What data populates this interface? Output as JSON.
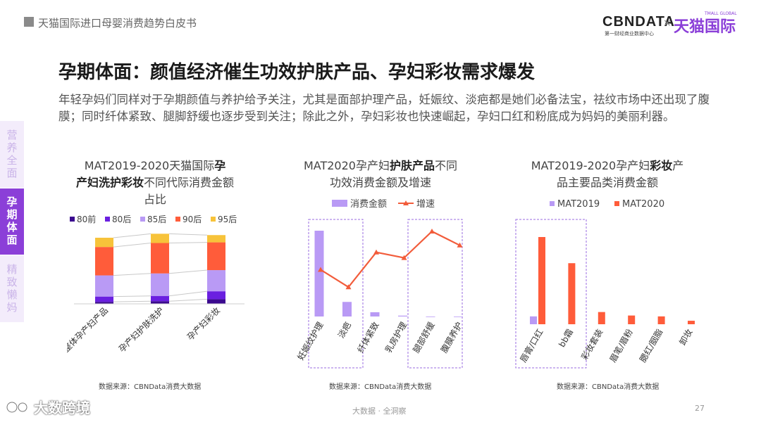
{
  "header": {
    "report_title": "天猫国际进口母婴消费趋势白皮书",
    "cbn_logo": "CBNDATA",
    "cbn_sub": "第一财经商业数据中心",
    "separator": "×",
    "tmall_logo": "天猫国际",
    "tmall_sup": "TMALL GLOBAL"
  },
  "page": {
    "title": "孕期体面：颜值经济催生功效护肤产品、孕妇彩妆需求爆发",
    "description": "年轻孕妈们同样对于孕期颜值与养护给予关注，尤其是面部护理产品，妊娠纹、淡疤都是她们必备法宝，祛纹市场中还出现了腹膜；同时纤体紧致、腿脚舒缓也逐步受到关注；除此之外，孕妇彩妆也快速崛起，孕妇口红和粉底成为妈妈的美丽利器。"
  },
  "sidebar": {
    "items": [
      {
        "label": "营养全面"
      },
      {
        "label": "孕期体面"
      },
      {
        "label": "精致懒妈"
      }
    ]
  },
  "chart1_title": {
    "p1": "MAT2019-2020天猫国际",
    "b1": "孕",
    "b2": "产妇洗护彩妆",
    "p2": "不同代际消费金额",
    "p3": "占比"
  },
  "chart2_title": {
    "p1": "MAT2020孕产妇",
    "b1": "护肤产品",
    "p2": "不同",
    "p3": "功效消费金额及增速"
  },
  "chart3_title": {
    "p1": "MAT2019-2020孕产妇",
    "b1": "彩妆",
    "p2": "产",
    "p3": "品主要品类消费金额"
  },
  "source_text": "数据来源：CBNData消费大数据",
  "footer": {
    "center": "大数据 · 全洞察",
    "page_number": "27",
    "watermark": "大数跨境"
  },
  "colors": {
    "purple_dark": "#3b0a8f",
    "purple_mid": "#6a1fe0",
    "lavender": "#b99af5",
    "coral": "#ff5c3a",
    "yellow": "#f7c33a",
    "brand": "#8b3fd8"
  },
  "chart_data": [
    {
      "type": "bar",
      "stacked": true,
      "normalized": true,
      "categories": [
        "整体孕产妇产品",
        "孕产妇护肤洗护",
        "孕产妇彩妆"
      ],
      "series": [
        {
          "name": "80前",
          "color": "#3b0a8f",
          "values": [
            0.03,
            0.04,
            0.07
          ]
        },
        {
          "name": "80后",
          "color": "#6a1fe0",
          "values": [
            0.08,
            0.08,
            0.12
          ]
        },
        {
          "name": "85后",
          "color": "#b99af5",
          "values": [
            0.32,
            0.34,
            0.32
          ]
        },
        {
          "name": "90后",
          "color": "#ff5c3a",
          "values": [
            0.43,
            0.46,
            0.42
          ]
        },
        {
          "name": "95后",
          "color": "#f7c33a",
          "values": [
            0.14,
            0.14,
            0.11
          ]
        }
      ],
      "ylim": [
        0,
        1
      ]
    },
    {
      "type": "bar+line",
      "categories": [
        "妊娠纹护理",
        "淡疤",
        "纤体紧致",
        "乳房护理",
        "腿部舒缓",
        "腹膜养护"
      ],
      "series": [
        {
          "name": "消费金额",
          "type": "bar",
          "color": "#b99af5",
          "values": [
            100,
            17,
            5,
            1,
            0,
            0
          ]
        },
        {
          "name": "增速",
          "type": "line",
          "color": "#f25c3b",
          "values": [
            45,
            20,
            70,
            62,
            100,
            80
          ]
        }
      ]
    },
    {
      "type": "bar",
      "categories": [
        "唇膏/口红",
        "bb霜",
        "彩妆套装",
        "眉笔/眉粉",
        "腮红/胭脂",
        "卸妆"
      ],
      "series": [
        {
          "name": "MAT2019",
          "color": "#b99af5",
          "values": [
            9,
            0,
            0,
            0,
            0,
            0
          ]
        },
        {
          "name": "MAT2020",
          "color": "#ff5c3a",
          "values": [
            100,
            70,
            14,
            10,
            9,
            4
          ]
        }
      ]
    }
  ]
}
